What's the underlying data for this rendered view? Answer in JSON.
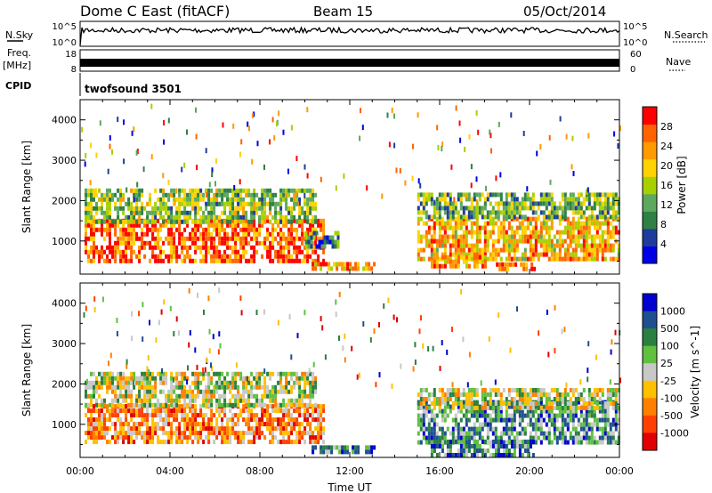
{
  "header": {
    "station": "Dome C East (fitACF)",
    "beam": "Beam 15",
    "date": "05/Oct/2014"
  },
  "top_panels": {
    "nsky_label": "N.Sky",
    "nsearch_label": "N.Search",
    "nsky_ticks": [
      "10^5",
      "10^0"
    ],
    "nsearch_ticks": [
      "10^5",
      "10^0"
    ],
    "freq_label": "Freq.",
    "freq_unit": "[MHz]",
    "freq_ticks": [
      "18",
      "8"
    ],
    "nave_label": "Nave",
    "nave_ticks": [
      "60",
      "0"
    ],
    "cpid_label": "CPID",
    "cpid_value": "twofsound 3501"
  },
  "chart_data": [
    {
      "type": "heatmap",
      "panel": "power",
      "ylabel": "Slant Range [km]",
      "ylim": [
        180,
        4500
      ],
      "yticks": [
        1000,
        2000,
        3000,
        4000
      ],
      "xlim": [
        0,
        24
      ],
      "colorbar": {
        "label": "Power [dB]",
        "ticks": [
          4,
          8,
          12,
          16,
          20,
          24,
          28
        ],
        "range": [
          0,
          32
        ]
      },
      "regions": [
        {
          "t0": 0.2,
          "t1": 10.8,
          "r0": 520,
          "r1": 1550,
          "level": 0.82
        },
        {
          "t0": 0.2,
          "t1": 10.5,
          "r0": 1500,
          "r1": 2300,
          "level": 0.45
        },
        {
          "t0": 10.0,
          "t1": 11.5,
          "r0": 820,
          "r1": 1250,
          "level": 0.3
        },
        {
          "t0": 10.3,
          "t1": 13.1,
          "r0": 260,
          "r1": 480,
          "level": 0.75
        },
        {
          "t0": 15.0,
          "t1": 24.0,
          "r0": 580,
          "r1": 1600,
          "level": 0.68
        },
        {
          "t0": 15.0,
          "t1": 24.0,
          "r0": 1550,
          "r1": 2200,
          "level": 0.4
        },
        {
          "t0": 15.6,
          "t1": 18.0,
          "r0": 340,
          "r1": 650,
          "level": 0.72
        },
        {
          "t0": 18.5,
          "t1": 20.2,
          "r0": 260,
          "r1": 470,
          "level": 0.8
        }
      ]
    },
    {
      "type": "heatmap",
      "panel": "velocity",
      "ylabel": "Slant Range [km]",
      "ylim": [
        180,
        4500
      ],
      "yticks": [
        1000,
        2000,
        3000,
        4000
      ],
      "xlim": [
        0,
        24
      ],
      "xticks": [
        "00:00",
        "04:00",
        "08:00",
        "12:00",
        "16:00",
        "20:00",
        "00:00"
      ],
      "xlabel": "Time UT",
      "colorbar": {
        "label": "Velocity [m s^-1]",
        "ticks": [
          "1000",
          "500",
          "100",
          "25",
          "-25",
          "-100",
          "-500",
          "-1000"
        ]
      },
      "regions": [
        {
          "t0": 0.2,
          "t1": 10.8,
          "r0": 520,
          "r1": 1500,
          "level": 0.72
        },
        {
          "t0": 0.2,
          "t1": 10.5,
          "r0": 1500,
          "r1": 2300,
          "level": 0.5
        },
        {
          "t0": 10.3,
          "t1": 13.1,
          "r0": 260,
          "r1": 480,
          "level": 0.25
        },
        {
          "t0": 15.0,
          "t1": 24.0,
          "r0": 560,
          "r1": 1600,
          "level": 0.3
        },
        {
          "t0": 15.0,
          "t1": 24.0,
          "r0": 1350,
          "r1": 1900,
          "level": 0.5
        },
        {
          "t0": 15.6,
          "t1": 20.2,
          "r0": 280,
          "r1": 620,
          "level": 0.25
        }
      ]
    }
  ],
  "colors": {
    "power_scale": [
      "#0000e6",
      "#1e3c9c",
      "#2f8045",
      "#5da85c",
      "#a8d000",
      "#ffd200",
      "#ff9a00",
      "#ff6400",
      "#ff0000"
    ],
    "velocity_scale": [
      "#0000d0",
      "#1e5090",
      "#2a8040",
      "#60c040",
      "#c8c8c8",
      "#ffc000",
      "#ff8000",
      "#ff4000",
      "#e00000"
    ]
  }
}
